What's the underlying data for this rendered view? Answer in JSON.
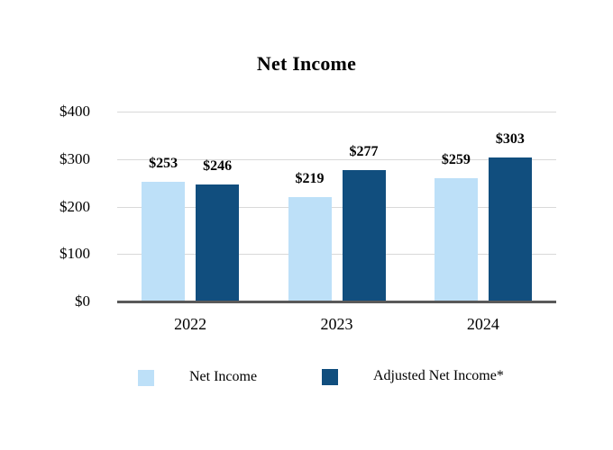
{
  "chart_data": {
    "type": "bar",
    "title": "Net Income",
    "categories": [
      "2022",
      "2023",
      "2024"
    ],
    "series": [
      {
        "name": "Net Income",
        "color": "#BDE0F8",
        "values": [
          253,
          219,
          259
        ],
        "labels": [
          "$253",
          "$219",
          "$259"
        ]
      },
      {
        "name": "Adjusted Net Income*",
        "color": "#114E7E",
        "values": [
          246,
          277,
          303
        ],
        "labels": [
          "$246",
          "$277",
          "$303"
        ]
      }
    ],
    "ylim": [
      0,
      400
    ],
    "yticks": [
      {
        "value": 400,
        "label": "$400"
      },
      {
        "value": 300,
        "label": "$300"
      },
      {
        "value": 200,
        "label": "$200"
      },
      {
        "value": 100,
        "label": "$100"
      },
      {
        "value": 0,
        "label": "$0"
      }
    ],
    "grid": true,
    "legend_position": "bottom",
    "colors": {
      "grid": "#D9D9D9",
      "axis": "#595959",
      "text": "#000000",
      "background": "#FFFFFF"
    }
  }
}
